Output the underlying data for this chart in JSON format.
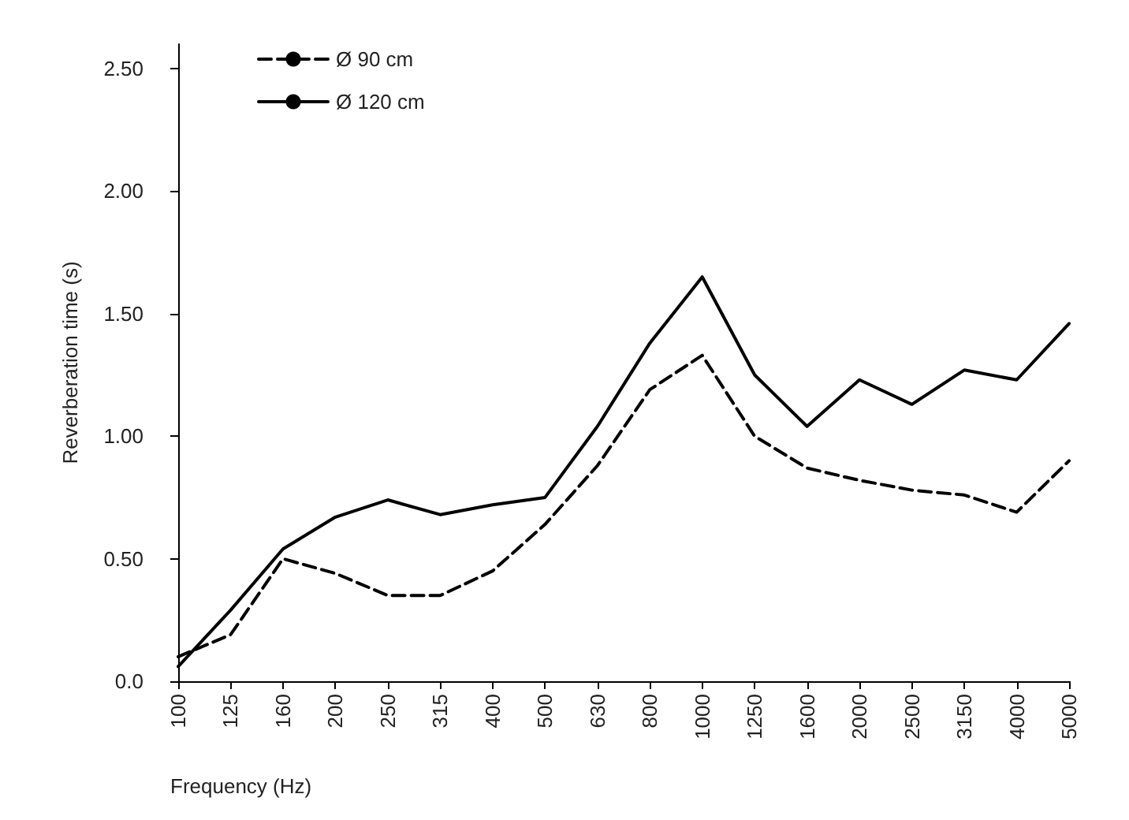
{
  "chart_data": {
    "type": "line",
    "xlabel": "Frequency (Hz)",
    "ylabel": "Reverberation time (s)",
    "categories": [
      "100",
      "125",
      "160",
      "200",
      "250",
      "315",
      "400",
      "500",
      "630",
      "800",
      "1000",
      "1250",
      "1600",
      "2000",
      "2500",
      "3150",
      "4000",
      "5000"
    ],
    "series": [
      {
        "name": "Ø 90 cm",
        "color": "#000000",
        "line_style": "dashed",
        "values": [
          0.1,
          0.19,
          0.5,
          0.44,
          0.35,
          0.35,
          0.45,
          0.64,
          0.88,
          1.19,
          1.33,
          1.0,
          0.87,
          0.82,
          0.78,
          0.76,
          0.69,
          0.9
        ]
      },
      {
        "name": "Ø 120 cm",
        "color": "#000000",
        "line_style": "solid",
        "values": [
          0.06,
          0.29,
          0.54,
          0.67,
          0.74,
          0.68,
          0.72,
          0.75,
          1.04,
          1.38,
          1.65,
          1.25,
          1.04,
          1.23,
          1.13,
          1.27,
          1.23,
          1.46
        ]
      }
    ],
    "ylim": [
      0,
      2.6
    ],
    "yticks": [
      {
        "value": 0,
        "label": "0.0"
      },
      {
        "value": 0.5,
        "label": "0.50"
      },
      {
        "value": 1,
        "label": "1.00"
      },
      {
        "value": 1.5,
        "label": "1.50"
      },
      {
        "value": 2,
        "label": "2.00"
      },
      {
        "value": 2.5,
        "label": "2.50"
      }
    ],
    "grid": false,
    "legend": "top left",
    "marker": "none"
  }
}
